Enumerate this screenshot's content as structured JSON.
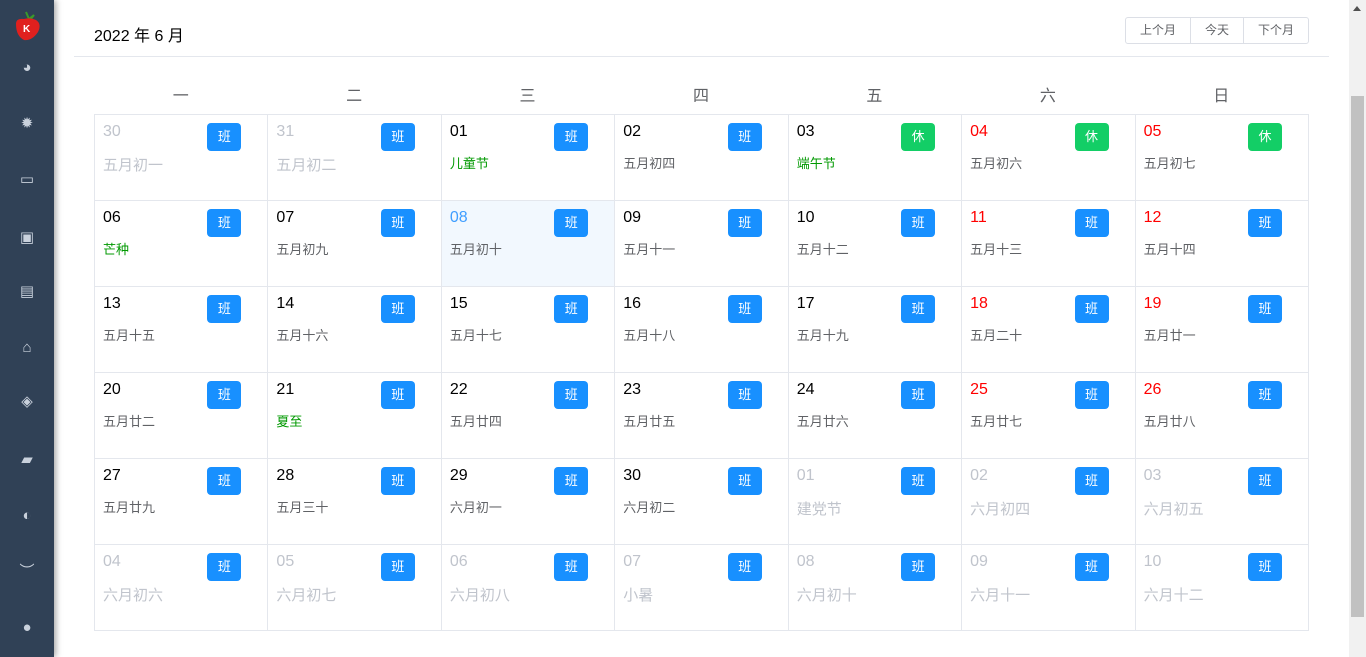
{
  "sidebar": {
    "icons": [
      "dashboard-icon",
      "gear-icon",
      "monitor-chart-icon",
      "briefcase-icon",
      "document-icon",
      "puzzle-icon",
      "layers-icon",
      "lock-icon",
      "toggle-icon",
      "eye-closed-icon",
      "users-icon"
    ]
  },
  "header": {
    "title": "2022 年 6 月",
    "prev": "上个月",
    "today": "今天",
    "next": "下个月"
  },
  "weekdays": [
    "一",
    "二",
    "三",
    "四",
    "五",
    "六",
    "日"
  ],
  "colors": {
    "work": "#1890ff",
    "rest": "#13ce66",
    "weekend": "#ff0000",
    "festival": "#009900",
    "selected": "#409eff"
  },
  "days": [
    {
      "d": "30",
      "l": "五月初一",
      "o": 1,
      "b": "班"
    },
    {
      "d": "31",
      "l": "五月初二",
      "o": 1,
      "b": "班"
    },
    {
      "d": "01",
      "l": "儿童节",
      "f": 1,
      "b": "班"
    },
    {
      "d": "02",
      "l": "五月初四",
      "b": "班"
    },
    {
      "d": "03",
      "l": "端午节",
      "f": 1,
      "b": "休"
    },
    {
      "d": "04",
      "l": "五月初六",
      "r": 1,
      "b": "休"
    },
    {
      "d": "05",
      "l": "五月初七",
      "r": 1,
      "b": "休"
    },
    {
      "d": "06",
      "l": "芒种",
      "f": 1,
      "b": "班"
    },
    {
      "d": "07",
      "l": "五月初九",
      "b": "班"
    },
    {
      "d": "08",
      "l": "五月初十",
      "s": 1,
      "b": "班"
    },
    {
      "d": "09",
      "l": "五月十一",
      "b": "班"
    },
    {
      "d": "10",
      "l": "五月十二",
      "b": "班"
    },
    {
      "d": "11",
      "l": "五月十三",
      "r": 1,
      "b": "班"
    },
    {
      "d": "12",
      "l": "五月十四",
      "r": 1,
      "b": "班"
    },
    {
      "d": "13",
      "l": "五月十五",
      "b": "班"
    },
    {
      "d": "14",
      "l": "五月十六",
      "b": "班"
    },
    {
      "d": "15",
      "l": "五月十七",
      "b": "班"
    },
    {
      "d": "16",
      "l": "五月十八",
      "b": "班"
    },
    {
      "d": "17",
      "l": "五月十九",
      "b": "班"
    },
    {
      "d": "18",
      "l": "五月二十",
      "r": 1,
      "b": "班"
    },
    {
      "d": "19",
      "l": "五月廿一",
      "r": 1,
      "b": "班"
    },
    {
      "d": "20",
      "l": "五月廿二",
      "b": "班"
    },
    {
      "d": "21",
      "l": "夏至",
      "f": 1,
      "b": "班"
    },
    {
      "d": "22",
      "l": "五月廿四",
      "b": "班"
    },
    {
      "d": "23",
      "l": "五月廿五",
      "b": "班"
    },
    {
      "d": "24",
      "l": "五月廿六",
      "b": "班"
    },
    {
      "d": "25",
      "l": "五月廿七",
      "r": 1,
      "b": "班"
    },
    {
      "d": "26",
      "l": "五月廿八",
      "r": 1,
      "b": "班"
    },
    {
      "d": "27",
      "l": "五月廿九",
      "b": "班"
    },
    {
      "d": "28",
      "l": "五月三十",
      "b": "班"
    },
    {
      "d": "29",
      "l": "六月初一",
      "b": "班"
    },
    {
      "d": "30",
      "l": "六月初二",
      "b": "班"
    },
    {
      "d": "01",
      "l": "建党节",
      "o": 1,
      "b": "班"
    },
    {
      "d": "02",
      "l": "六月初四",
      "o": 1,
      "b": "班"
    },
    {
      "d": "03",
      "l": "六月初五",
      "o": 1,
      "b": "班"
    },
    {
      "d": "04",
      "l": "六月初六",
      "o": 1,
      "b": "班"
    },
    {
      "d": "05",
      "l": "六月初七",
      "o": 1,
      "b": "班"
    },
    {
      "d": "06",
      "l": "六月初八",
      "o": 1,
      "b": "班"
    },
    {
      "d": "07",
      "l": "小暑",
      "o": 1,
      "b": "班"
    },
    {
      "d": "08",
      "l": "六月初十",
      "o": 1,
      "b": "班"
    },
    {
      "d": "09",
      "l": "六月十一",
      "o": 1,
      "b": "班"
    },
    {
      "d": "10",
      "l": "六月十二",
      "o": 1,
      "b": "班"
    }
  ]
}
